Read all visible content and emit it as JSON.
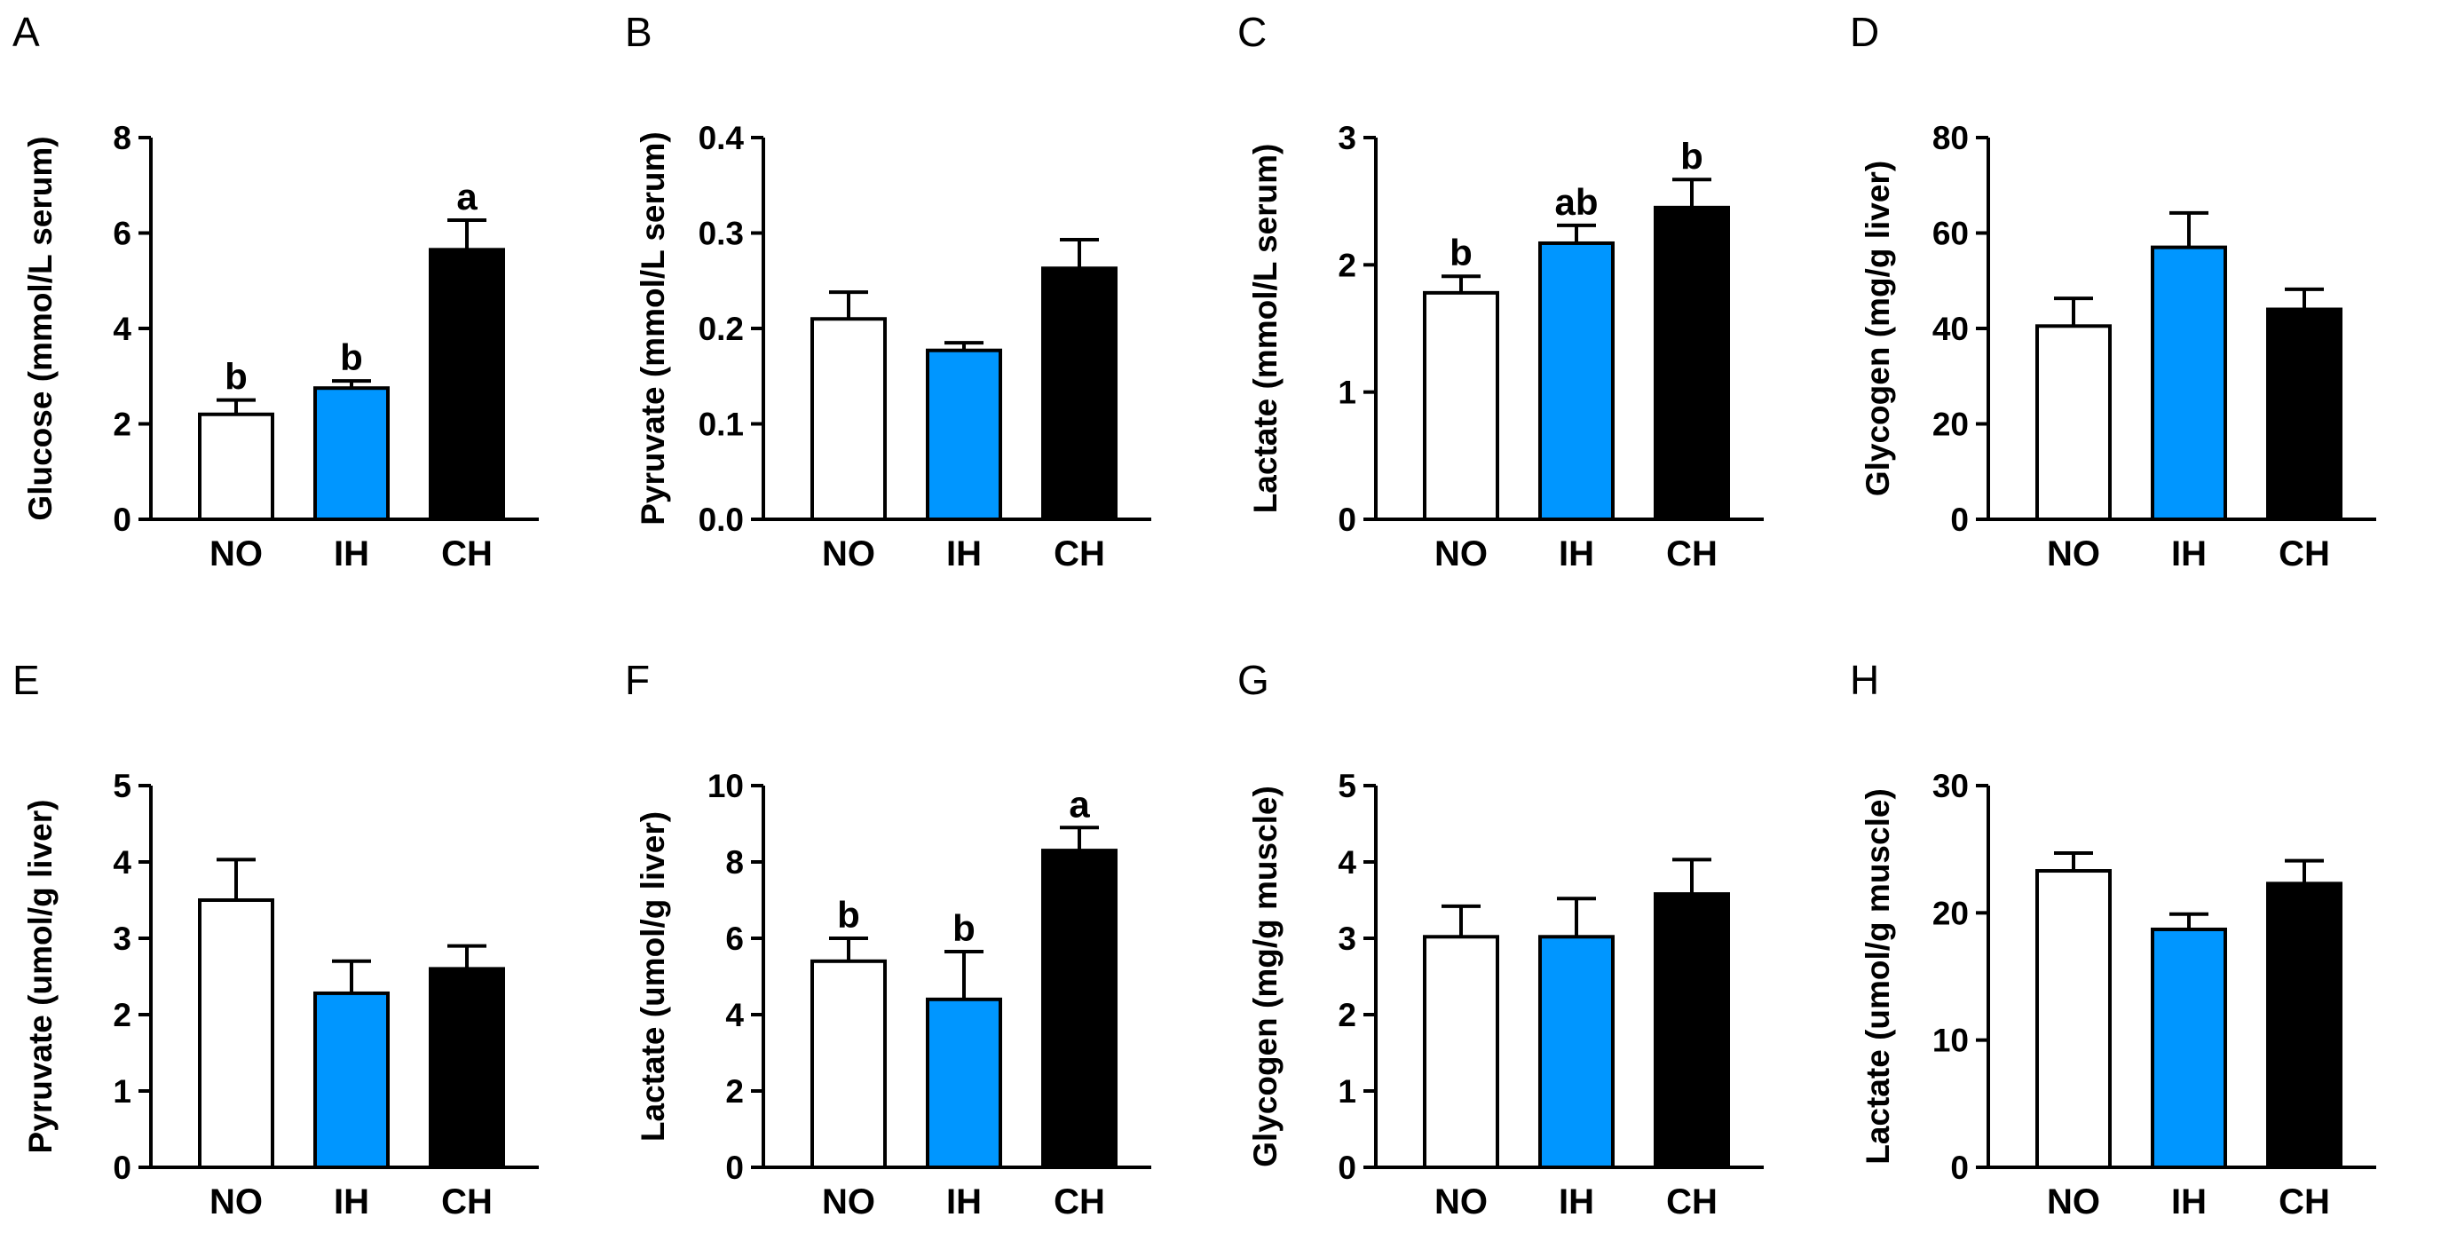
{
  "colors": {
    "NO": "#ffffff",
    "IH": "#0096ff",
    "CH": "#000000",
    "axis": "#000000"
  },
  "chart_data": [
    {
      "panel": "A",
      "type": "bar",
      "categories": [
        "NO",
        "IH",
        "CH"
      ],
      "values": [
        2.2,
        2.75,
        5.65
      ],
      "errors": [
        0.3,
        0.15,
        0.62
      ],
      "significance": [
        "b",
        "b",
        "a"
      ],
      "ylabel": "Glucose (mmol/L serum)",
      "ylim": [
        0,
        8
      ],
      "yticks": [
        0,
        2,
        4,
        6,
        8
      ],
      "ytick_labels": [
        "0",
        "2",
        "4",
        "6",
        "8"
      ]
    },
    {
      "panel": "B",
      "type": "bar",
      "categories": [
        "NO",
        "IH",
        "CH"
      ],
      "values": [
        0.21,
        0.177,
        0.263
      ],
      "errors": [
        0.028,
        0.008,
        0.03
      ],
      "significance": [
        "",
        "",
        ""
      ],
      "ylabel": "Pyruvate (mmol/L serum)",
      "ylim": [
        0,
        0.4
      ],
      "yticks": [
        0,
        0.1,
        0.2,
        0.3,
        0.4
      ],
      "ytick_labels": [
        "0.0",
        "0.1",
        "0.2",
        "0.3",
        "0.4"
      ]
    },
    {
      "panel": "C",
      "type": "bar",
      "categories": [
        "NO",
        "IH",
        "CH"
      ],
      "values": [
        1.78,
        2.17,
        2.45
      ],
      "errors": [
        0.13,
        0.14,
        0.22
      ],
      "significance": [
        "b",
        "ab",
        "b"
      ],
      "ylabel": "Lactate (mmol/L serum)",
      "ylim": [
        0,
        3
      ],
      "yticks": [
        0,
        1,
        2,
        3
      ],
      "ytick_labels": [
        "0",
        "1",
        "2",
        "3"
      ]
    },
    {
      "panel": "D",
      "type": "bar",
      "categories": [
        "NO",
        "IH",
        "CH"
      ],
      "values": [
        40.5,
        57,
        44
      ],
      "errors": [
        5.8,
        7.2,
        4.2
      ],
      "significance": [
        "",
        "",
        ""
      ],
      "ylabel": "Glycogen (mg/g liver)",
      "ylim": [
        0,
        80
      ],
      "yticks": [
        0,
        20,
        40,
        60,
        80
      ],
      "ytick_labels": [
        "0",
        "20",
        "40",
        "60",
        "80"
      ]
    },
    {
      "panel": "E",
      "type": "bar",
      "categories": [
        "NO",
        "IH",
        "CH"
      ],
      "values": [
        3.5,
        2.28,
        2.6
      ],
      "errors": [
        0.53,
        0.42,
        0.3
      ],
      "significance": [
        "",
        "",
        ""
      ],
      "ylabel": "Pyruvate (umol/g liver)",
      "ylim": [
        0,
        5
      ],
      "yticks": [
        0,
        1,
        2,
        3,
        4,
        5
      ],
      "ytick_labels": [
        "0",
        "1",
        "2",
        "3",
        "4",
        "5"
      ]
    },
    {
      "panel": "F",
      "type": "bar",
      "categories": [
        "NO",
        "IH",
        "CH"
      ],
      "values": [
        5.4,
        4.4,
        8.3
      ],
      "errors": [
        0.6,
        1.25,
        0.6
      ],
      "significance": [
        "b",
        "b",
        "a"
      ],
      "ylabel": "Lactate (umol/g liver)",
      "ylim": [
        0,
        10
      ],
      "yticks": [
        0,
        2,
        4,
        6,
        8,
        10
      ],
      "ytick_labels": [
        "0",
        "2",
        "4",
        "6",
        "8",
        "10"
      ]
    },
    {
      "panel": "G",
      "type": "bar",
      "categories": [
        "NO",
        "IH",
        "CH"
      ],
      "values": [
        3.02,
        3.02,
        3.58
      ],
      "errors": [
        0.4,
        0.5,
        0.45
      ],
      "significance": [
        "",
        "",
        ""
      ],
      "ylabel": "Glycogen (mg/g muscle)",
      "ylim": [
        0,
        5
      ],
      "yticks": [
        0,
        1,
        2,
        3,
        4,
        5
      ],
      "ytick_labels": [
        "0",
        "1",
        "2",
        "3",
        "4",
        "5"
      ]
    },
    {
      "panel": "H",
      "type": "bar",
      "categories": [
        "NO",
        "IH",
        "CH"
      ],
      "values": [
        23.3,
        18.7,
        22.3
      ],
      "errors": [
        1.4,
        1.2,
        1.8
      ],
      "significance": [
        "",
        "",
        ""
      ],
      "ylabel": "Lactate (umol/g muscle)",
      "ylim": [
        0,
        30
      ],
      "yticks": [
        0,
        10,
        20,
        30
      ],
      "ytick_labels": [
        "0",
        "10",
        "20",
        "30"
      ]
    }
  ]
}
